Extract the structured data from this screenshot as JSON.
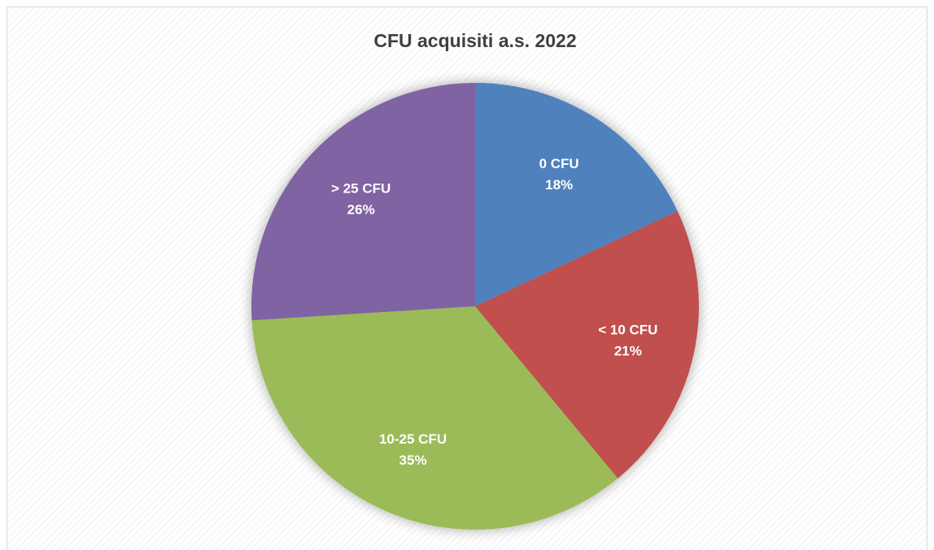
{
  "chart_data": {
    "type": "pie",
    "title": "CFU acquisiti a.s. 2022",
    "categories": [
      "0 CFU",
      "< 10 CFU",
      "10-25 CFU",
      "> 25 CFU"
    ],
    "values": [
      18,
      21,
      35,
      26
    ],
    "value_labels": [
      "18%",
      "21%",
      "35%",
      "26%"
    ],
    "colors": [
      "#4f81bd",
      "#c0504d",
      "#9bbb59",
      "#8064a2"
    ]
  }
}
